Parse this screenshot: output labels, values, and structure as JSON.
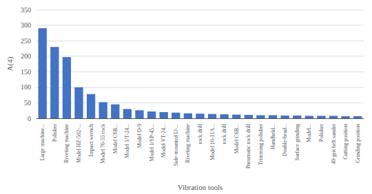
{
  "chart_data": {
    "type": "bar",
    "categories": [
      "Large machine...",
      "Polisher",
      "Riveting machine",
      "Model HZ-502-...",
      "Impact wrench",
      "Model 76-55 rock",
      "Model C6B...",
      "Model 1/T-24...",
      "Model D-9",
      "Model 1/SP-45...",
      "Model YT-24...",
      "Side-mounted U-...",
      "Riveting machine",
      "rock drill",
      "Model 10-11A...",
      "rock drill",
      "Model C6B...",
      "Pneumatic rock drill",
      "Trimming polisher",
      "Handheld...",
      "Double-head...",
      "Surface grinding",
      "Model...",
      "Polisher",
      "40-grit belt sander",
      "Cutting position",
      "Grinding position"
    ],
    "values": [
      290,
      230,
      197,
      100,
      78,
      52,
      45,
      30,
      26,
      22,
      20,
      18,
      16,
      15,
      14,
      13,
      12,
      11,
      10,
      10,
      9,
      9,
      8,
      8,
      8,
      7,
      7
    ],
    "color": "#4472c4",
    "xlabel": "Vibration tools",
    "ylabel": "A(4)",
    "ylim": [
      0,
      350
    ],
    "yticks": [
      0,
      50,
      100,
      150,
      200,
      250,
      300,
      350
    ],
    "grid": true
  }
}
